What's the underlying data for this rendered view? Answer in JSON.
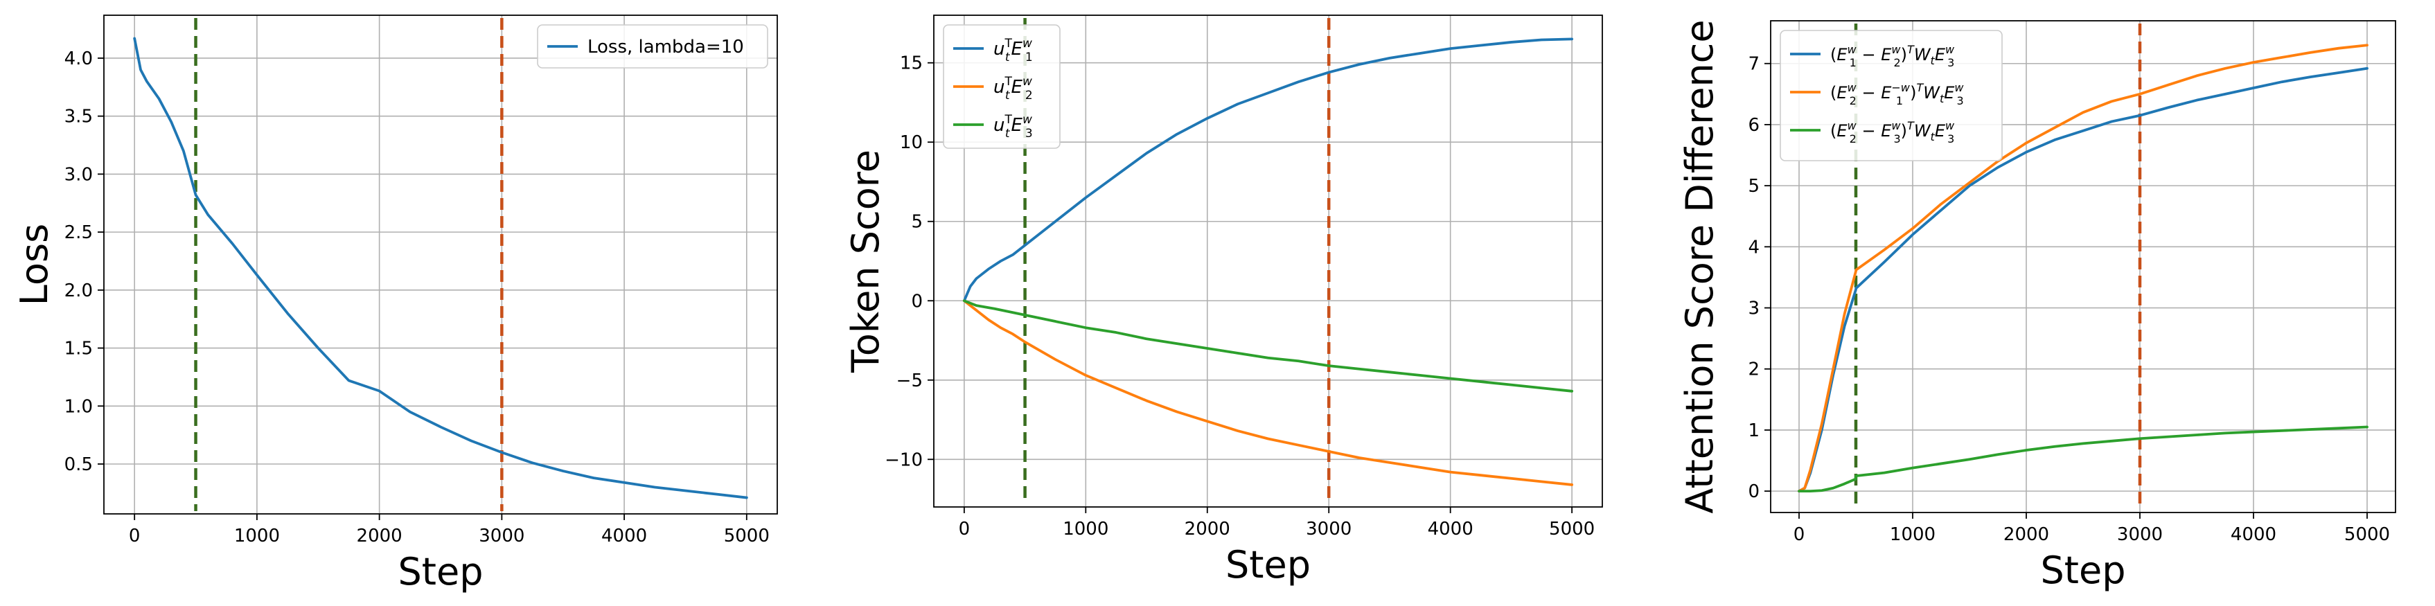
{
  "chart_data": [
    {
      "type": "line",
      "xlabel": "Step",
      "ylabel": "Loss",
      "xlim": [
        -250,
        5250
      ],
      "ylim": [
        0.07,
        4.37
      ],
      "xticks": [
        0,
        1000,
        2000,
        3000,
        4000,
        5000
      ],
      "yticks": [
        0.5,
        1.0,
        1.5,
        2.0,
        2.5,
        3.0,
        3.5,
        4.0
      ],
      "xtick_labels": [
        "0",
        "1000",
        "2000",
        "3000",
        "4000",
        "5000"
      ],
      "ytick_labels": [
        "0.5",
        "1.0",
        "1.5",
        "2.0",
        "2.5",
        "3.0",
        "3.5",
        "4.0"
      ],
      "grid": true,
      "legend_position": "top-right",
      "vlines": [
        {
          "x": 500,
          "color": "#3a6e1f",
          "style": "dashed"
        },
        {
          "x": 3000,
          "color": "#c8501a",
          "style": "dashed"
        }
      ],
      "series": [
        {
          "name": "Loss, lambda=10",
          "color": "#1f77b4",
          "x": [
            0,
            50,
            100,
            200,
            300,
            400,
            500,
            600,
            800,
            1000,
            1250,
            1500,
            1750,
            2000,
            2250,
            2500,
            2750,
            3000,
            3250,
            3500,
            3750,
            4000,
            4250,
            4500,
            4750,
            5000
          ],
          "y": [
            4.17,
            3.9,
            3.8,
            3.65,
            3.45,
            3.2,
            2.82,
            2.65,
            2.4,
            2.13,
            1.8,
            1.5,
            1.22,
            1.13,
            0.95,
            0.82,
            0.7,
            0.6,
            0.51,
            0.44,
            0.38,
            0.34,
            0.3,
            0.27,
            0.24,
            0.21
          ]
        }
      ]
    },
    {
      "type": "line",
      "xlabel": "Step",
      "ylabel": "Token Score",
      "xlim": [
        -250,
        5250
      ],
      "ylim": [
        -13,
        18
      ],
      "xticks": [
        0,
        1000,
        2000,
        3000,
        4000,
        5000
      ],
      "yticks": [
        -10,
        -5,
        0,
        5,
        10,
        15
      ],
      "xtick_labels": [
        "0",
        "1000",
        "2000",
        "3000",
        "4000",
        "5000"
      ],
      "ytick_labels": [
        "−10",
        "−5",
        "0",
        "5",
        "10",
        "15"
      ],
      "grid": true,
      "legend_position": "top-left",
      "vlines": [
        {
          "x": 500,
          "color": "#3a6e1f",
          "style": "dashed"
        },
        {
          "x": 3000,
          "color": "#c8501a",
          "style": "dashed"
        }
      ],
      "series": [
        {
          "name_base": "u",
          "name_sub": "t",
          "name_sup": "T",
          "name_mid": "E",
          "name_mid_sub": "1",
          "name_mid_sup": "w",
          "color": "#1f77b4",
          "x": [
            0,
            50,
            100,
            200,
            300,
            400,
            500,
            750,
            1000,
            1250,
            1500,
            1750,
            2000,
            2250,
            2500,
            2750,
            3000,
            3250,
            3500,
            3750,
            4000,
            4250,
            4500,
            4750,
            5000
          ],
          "y": [
            0,
            0.9,
            1.4,
            2.0,
            2.5,
            2.9,
            3.5,
            5.0,
            6.5,
            7.9,
            9.3,
            10.5,
            11.5,
            12.4,
            13.1,
            13.8,
            14.4,
            14.9,
            15.3,
            15.6,
            15.9,
            16.1,
            16.3,
            16.45,
            16.5
          ]
        },
        {
          "name_base": "u",
          "name_sub": "t",
          "name_sup": "T",
          "name_mid": "E",
          "name_mid_sub": "2",
          "name_mid_sup": "w",
          "color": "#ff7f0e",
          "x": [
            0,
            100,
            200,
            300,
            400,
            500,
            750,
            1000,
            1250,
            1500,
            1750,
            2000,
            2250,
            2500,
            2750,
            3000,
            3250,
            3500,
            3750,
            4000,
            4250,
            4500,
            4750,
            5000
          ],
          "y": [
            0,
            -0.6,
            -1.2,
            -1.7,
            -2.1,
            -2.6,
            -3.7,
            -4.7,
            -5.5,
            -6.3,
            -7.0,
            -7.6,
            -8.2,
            -8.7,
            -9.1,
            -9.5,
            -9.9,
            -10.2,
            -10.5,
            -10.8,
            -11.0,
            -11.2,
            -11.4,
            -11.6
          ]
        },
        {
          "name_base": "u",
          "name_sub": "t",
          "name_sup": "T",
          "name_mid": "E",
          "name_mid_sub": "3",
          "name_mid_sup": "w",
          "color": "#2ca02c",
          "x": [
            0,
            100,
            250,
            500,
            750,
            1000,
            1250,
            1500,
            1750,
            2000,
            2250,
            2500,
            2750,
            3000,
            3250,
            3500,
            3750,
            4000,
            4250,
            4500,
            4750,
            5000
          ],
          "y": [
            0,
            -0.3,
            -0.5,
            -0.9,
            -1.3,
            -1.7,
            -2.0,
            -2.4,
            -2.7,
            -3.0,
            -3.3,
            -3.6,
            -3.8,
            -4.1,
            -4.3,
            -4.5,
            -4.7,
            -4.9,
            -5.1,
            -5.3,
            -5.5,
            -5.7
          ]
        }
      ]
    },
    {
      "type": "line",
      "xlabel": "Step",
      "ylabel": "Attention Score Difference",
      "xlim": [
        -250,
        5250
      ],
      "ylim": [
        -0.35,
        7.7
      ],
      "xticks": [
        0,
        1000,
        2000,
        3000,
        4000,
        5000
      ],
      "yticks": [
        0,
        1,
        2,
        3,
        4,
        5,
        6,
        7
      ],
      "xtick_labels": [
        "0",
        "1000",
        "2000",
        "3000",
        "4000",
        "5000"
      ],
      "ytick_labels": [
        "0",
        "1",
        "2",
        "3",
        "4",
        "5",
        "6",
        "7"
      ],
      "grid": true,
      "legend_position": "top-left",
      "vlines": [
        {
          "x": 500,
          "color": "#3a6e1f",
          "style": "dashed"
        },
        {
          "x": 3000,
          "color": "#c8501a",
          "style": "dashed"
        }
      ],
      "series": [
        {
          "label_a": "1",
          "label_b": "2",
          "label_d": "3",
          "label_neg": false,
          "color": "#1f77b4",
          "x": [
            0,
            50,
            100,
            200,
            300,
            400,
            500,
            501,
            750,
            1000,
            1250,
            1500,
            1750,
            2000,
            2250,
            2500,
            2750,
            3000,
            3250,
            3500,
            3750,
            4000,
            4250,
            4500,
            4750,
            5000
          ],
          "y": [
            0,
            0.05,
            0.3,
            1.0,
            1.9,
            2.7,
            3.3,
            3.32,
            3.75,
            4.2,
            4.6,
            5.0,
            5.3,
            5.55,
            5.75,
            5.9,
            6.05,
            6.15,
            6.28,
            6.4,
            6.5,
            6.6,
            6.7,
            6.78,
            6.85,
            6.92
          ]
        },
        {
          "label_a": "2",
          "label_b": "1",
          "label_d": "3",
          "label_neg": true,
          "color": "#ff7f0e",
          "x": [
            0,
            50,
            100,
            200,
            300,
            400,
            500,
            501,
            750,
            1000,
            1250,
            1500,
            1750,
            2000,
            2250,
            2500,
            2750,
            3000,
            3250,
            3500,
            3750,
            4000,
            4250,
            4500,
            4750,
            5000
          ],
          "y": [
            0,
            0.05,
            0.35,
            1.1,
            2.0,
            2.9,
            3.6,
            3.62,
            3.95,
            4.3,
            4.7,
            5.05,
            5.4,
            5.7,
            5.95,
            6.2,
            6.38,
            6.5,
            6.65,
            6.8,
            6.92,
            7.02,
            7.1,
            7.18,
            7.25,
            7.3
          ]
        },
        {
          "label_a": "2",
          "label_b": "3",
          "label_d": "3",
          "label_neg": false,
          "color": "#2ca02c",
          "x": [
            0,
            100,
            200,
            300,
            400,
            500,
            501,
            750,
            1000,
            1250,
            1500,
            1750,
            2000,
            2250,
            2500,
            2750,
            3000,
            3250,
            3500,
            3750,
            4000,
            4250,
            4500,
            4750,
            5000
          ],
          "y": [
            0,
            0,
            0.01,
            0.05,
            0.12,
            0.2,
            0.25,
            0.3,
            0.38,
            0.45,
            0.52,
            0.6,
            0.67,
            0.73,
            0.78,
            0.82,
            0.86,
            0.89,
            0.92,
            0.95,
            0.97,
            0.99,
            1.01,
            1.03,
            1.05
          ]
        }
      ]
    }
  ]
}
